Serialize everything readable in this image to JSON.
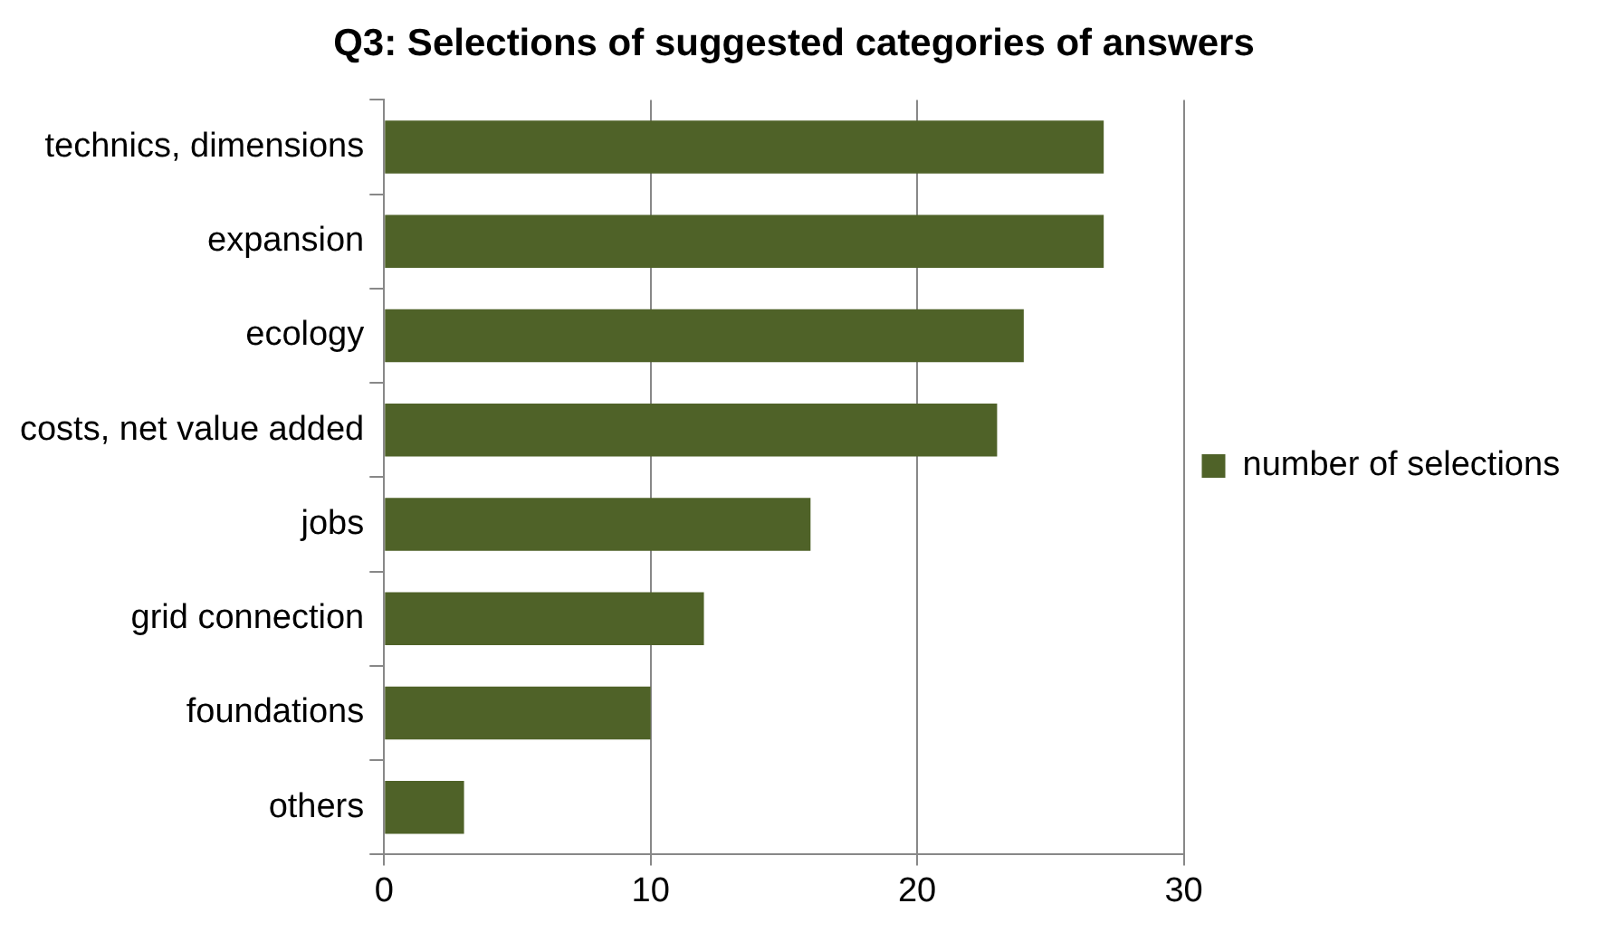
{
  "chart_data": {
    "type": "bar",
    "orientation": "horizontal",
    "title": "Q3: Selections of suggested categories of answers",
    "categories": [
      "technics, dimensions",
      "expansion",
      "ecology",
      "costs, net value added",
      "jobs",
      "grid connection",
      "foundations",
      "others"
    ],
    "series": [
      {
        "name": "number of selections",
        "color": "#4f6228",
        "values": [
          27,
          27,
          24,
          23,
          16,
          12,
          10,
          3
        ]
      }
    ],
    "xlim": [
      0,
      30
    ],
    "xticks": [
      0,
      10,
      20,
      30
    ],
    "grid": "x",
    "legend": "right"
  }
}
